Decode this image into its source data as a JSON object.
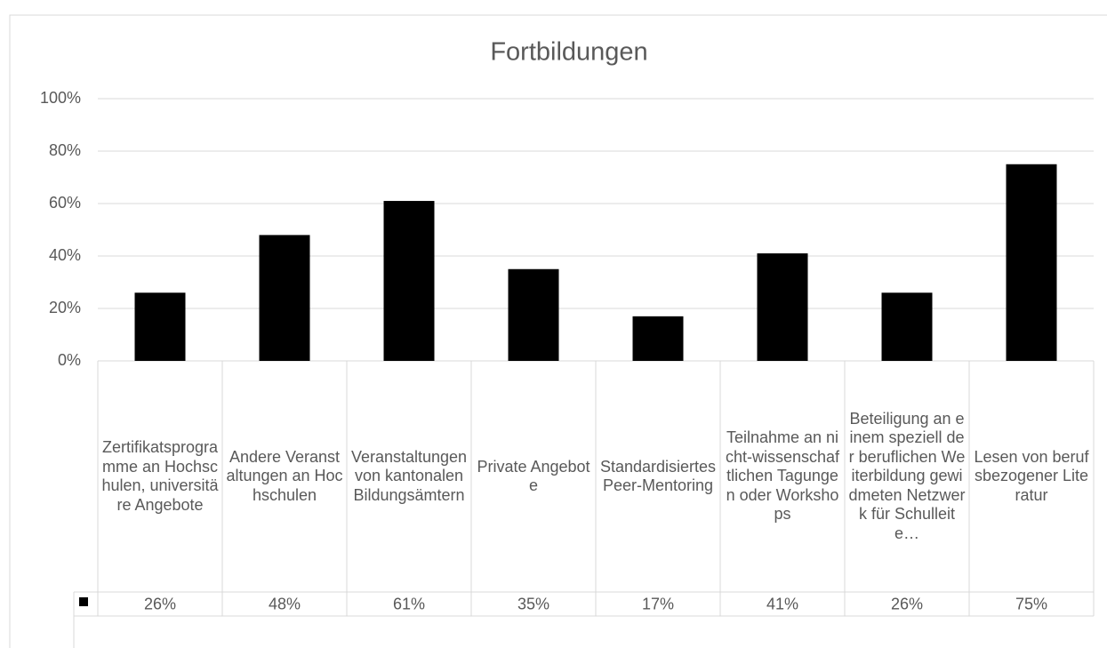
{
  "chart_data": {
    "type": "bar",
    "title": "Fortbildungen",
    "categories": [
      "Zertifikatsprogramme an Hochschulen, universitäre Angebote",
      "Andere Veranstaltungen an Hochschulen",
      "Veranstaltungen von kantonalen Bildungsämtern",
      "Private Angebote",
      "Standardisiertes Peer-Mentoring",
      "Teilnahme an nicht-wissenschaftlichen Tagungen oder Workshops",
      "Beteiligung an einem speziell der beruflichen Weiterbildung gewidmeten Netzwerk für Schulleite…",
      "Lesen von berufsbezogener Literatur"
    ],
    "values": [
      26,
      48,
      61,
      35,
      17,
      41,
      26,
      75
    ],
    "value_labels": [
      "26%",
      "48%",
      "61%",
      "35%",
      "17%",
      "41%",
      "26%",
      "75%"
    ],
    "color": "#000000",
    "ylim": [
      0,
      100
    ],
    "yticks": [
      {
        "value": 0,
        "label": "0%"
      },
      {
        "value": 20,
        "label": "20%"
      },
      {
        "value": 40,
        "label": "40%"
      },
      {
        "value": 60,
        "label": "60%"
      },
      {
        "value": 80,
        "label": "80%"
      },
      {
        "value": 100,
        "label": "100%"
      }
    ],
    "grid": true
  }
}
